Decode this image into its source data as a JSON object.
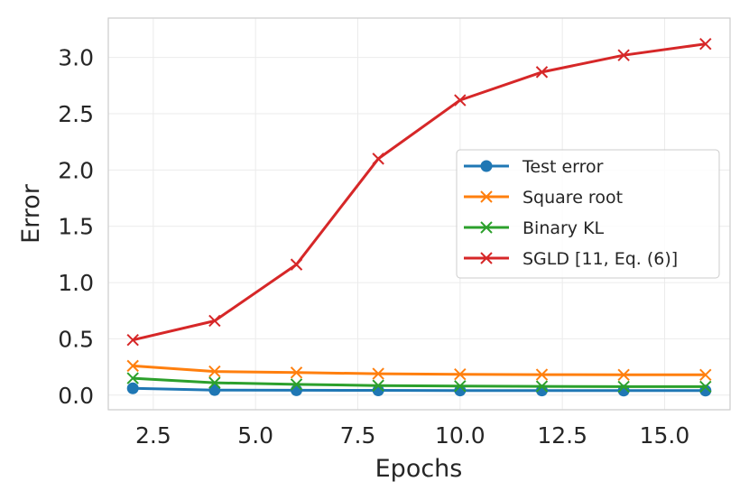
{
  "chart_data": {
    "type": "line",
    "xlabel": "Epochs",
    "ylabel": "Error",
    "xlim": [
      1.4,
      16.6
    ],
    "ylim": [
      -0.13,
      3.35
    ],
    "xticks": [
      2.5,
      5.0,
      7.5,
      10.0,
      12.5,
      15.0
    ],
    "xtick_labels": [
      "2.5",
      "5.0",
      "7.5",
      "10.0",
      "12.5",
      "15.0"
    ],
    "yticks": [
      0.0,
      0.5,
      1.0,
      1.5,
      2.0,
      2.5,
      3.0
    ],
    "ytick_labels": [
      "0.0",
      "0.5",
      "1.0",
      "1.5",
      "2.0",
      "2.5",
      "3.0"
    ],
    "grid": true,
    "legend_position": "center-right",
    "x": [
      2,
      4,
      6,
      8,
      10,
      12,
      14,
      16
    ],
    "series": [
      {
        "name": "Test error",
        "color": "#1f77b4",
        "marker": "circle",
        "values": [
          0.06,
          0.045,
          0.043,
          0.042,
          0.041,
          0.041,
          0.04,
          0.04
        ]
      },
      {
        "name": "Square root",
        "color": "#ff7f0e",
        "marker": "x",
        "values": [
          0.26,
          0.21,
          0.2,
          0.19,
          0.185,
          0.182,
          0.18,
          0.18
        ]
      },
      {
        "name": "Binary KL",
        "color": "#2ca02c",
        "marker": "x",
        "values": [
          0.15,
          0.11,
          0.095,
          0.085,
          0.08,
          0.078,
          0.075,
          0.075
        ]
      },
      {
        "name": "SGLD [11, Eq. (6)]",
        "color": "#d62728",
        "marker": "x",
        "values": [
          0.49,
          0.66,
          1.16,
          2.1,
          2.62,
          2.87,
          3.02,
          3.12
        ]
      }
    ]
  }
}
